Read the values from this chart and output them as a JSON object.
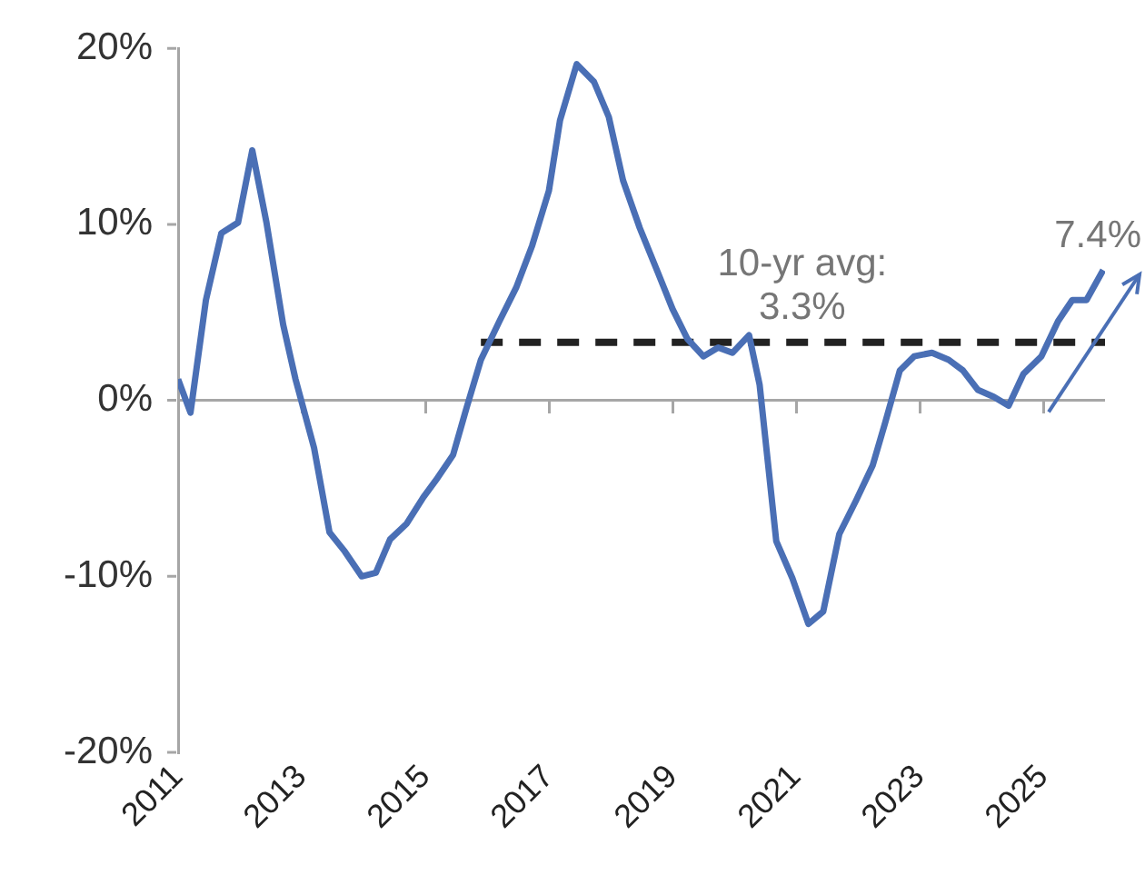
{
  "chart_data": {
    "type": "line",
    "grid": false,
    "legend": false,
    "marker": "none",
    "xlim": [
      2011,
      2026
    ],
    "xticks": [
      2011,
      2013,
      2015,
      2017,
      2019,
      2021,
      2023,
      2025
    ],
    "ylim": [
      -20,
      20
    ],
    "yticks": [
      {
        "value": -20,
        "label": "-20%"
      },
      {
        "value": -10,
        "label": "-10%"
      },
      {
        "value": 0,
        "label": "0%"
      },
      {
        "value": 10,
        "label": "10%"
      },
      {
        "value": 20,
        "label": "20%"
      }
    ],
    "series": [
      {
        "color": "#4a6fb5",
        "line_style": "solid",
        "x": [
          2011.0,
          2011.2,
          2011.45,
          2011.7,
          2011.97,
          2012.2,
          2012.43,
          2012.7,
          2012.9,
          2013.2,
          2013.45,
          2013.7,
          2013.97,
          2014.2,
          2014.43,
          2014.7,
          2014.97,
          2015.2,
          2015.45,
          2015.67,
          2015.9,
          2016.2,
          2016.47,
          2016.73,
          2017.0,
          2017.18,
          2017.45,
          2017.73,
          2017.97,
          2018.2,
          2018.47,
          2018.76,
          2019.0,
          2019.24,
          2019.5,
          2019.74,
          2019.97,
          2020.24,
          2020.41,
          2020.68,
          2020.94,
          2021.2,
          2021.44,
          2021.7,
          2021.97,
          2022.24,
          2022.44,
          2022.68,
          2022.91,
          2023.2,
          2023.47,
          2023.7,
          2023.94,
          2024.2,
          2024.44,
          2024.68,
          2024.97,
          2025.24,
          2025.47,
          2025.7,
          2025.97
        ],
        "values": [
          1.2,
          -0.7,
          5.7,
          9.5,
          10.1,
          14.2,
          10.1,
          4.3,
          1.2,
          -2.7,
          -7.5,
          -8.6,
          -10.0,
          -9.8,
          -7.9,
          -7.0,
          -5.5,
          -4.4,
          -3.1,
          -0.4,
          2.3,
          4.5,
          6.4,
          8.8,
          11.9,
          15.9,
          19.1,
          18.1,
          16.1,
          12.5,
          9.8,
          7.3,
          5.2,
          3.5,
          2.5,
          3.0,
          2.7,
          3.7,
          0.9,
          -8.0,
          -10.1,
          -12.7,
          -12.0,
          -7.6,
          -5.7,
          -3.7,
          -1.3,
          1.7,
          2.5,
          2.7,
          2.3,
          1.7,
          0.6,
          0.2,
          -0.3,
          1.5,
          2.5,
          4.5,
          5.7,
          5.7,
          7.4
        ]
      },
      {
        "color": "#222222",
        "line_style": "dashed",
        "x": [
          2015.9,
          2026
        ],
        "values": [
          3.3,
          3.3
        ]
      }
    ],
    "ref_lines": [
      {
        "axis": "y",
        "value": 0,
        "color": "#a6a6a6"
      }
    ],
    "annotations": [
      {
        "text": "10-yr avg: 3.3%",
        "x": 2021.1,
        "y": 3.3
      },
      {
        "text": "7.4%",
        "x": 2025.97,
        "y": 7.4
      }
    ]
  }
}
